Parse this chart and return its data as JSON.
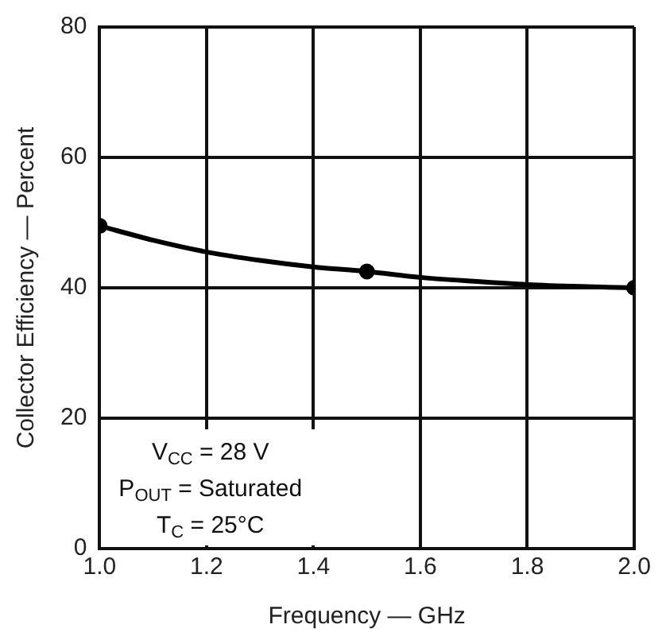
{
  "chart_data": {
    "type": "line",
    "xlabel": "Frequency — GHz",
    "ylabel": "Collector Efficiency — Percent",
    "xlim": [
      1.0,
      2.0
    ],
    "xticks": [
      {
        "value": 1.0,
        "label": "1.0"
      },
      {
        "value": 1.2,
        "label": "1.2"
      },
      {
        "value": 1.4,
        "label": "1.4"
      },
      {
        "value": 1.6,
        "label": "1.6"
      },
      {
        "value": 1.8,
        "label": "1.8"
      },
      {
        "value": 2.0,
        "label": "2.0"
      }
    ],
    "ylim": [
      0,
      80
    ],
    "yticks": [
      0,
      20,
      40,
      60,
      80
    ],
    "grid": true,
    "legend": false,
    "series": [
      {
        "color": "#000000",
        "marker": "none",
        "x": [
          1.0,
          1.1,
          1.2,
          1.3,
          1.4,
          1.5,
          1.6,
          1.7,
          1.8,
          1.9,
          2.0
        ],
        "values": [
          49.5,
          47.3,
          45.5,
          44.2,
          43.2,
          42.5,
          41.6,
          41.0,
          40.5,
          40.2,
          40.0
        ]
      },
      {
        "type": "scatter",
        "color": "#000000",
        "marker": "circle",
        "x": [
          1.0,
          1.5,
          2.0
        ],
        "values": [
          49.5,
          42.5,
          40.0
        ]
      }
    ],
    "annotations": [
      "V$_{CC}$ = 28 V",
      "P$_{OUT}$ = Saturated",
      "T$_{C}$ = 25°C"
    ]
  }
}
